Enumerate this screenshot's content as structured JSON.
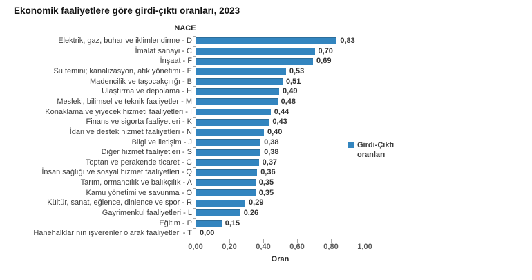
{
  "header": {
    "title": "Ekonomik faaliyetlere göre girdi-çıktı oranları, 2023"
  },
  "colors": {
    "bar": "#3385BF",
    "bar_edge": "#2D6E9B",
    "axis_line": "#A6A6A6",
    "tick_text": "#595959",
    "label_text": "#3d3d3d"
  },
  "chart_data": {
    "type": "bar",
    "orientation": "horizontal",
    "title": "Ekonomik faaliyetlere göre girdi-çıktı oranları, 2023",
    "category_axis_title": "NACE",
    "value_axis_title": "Oran",
    "xlim": [
      0,
      1.0
    ],
    "x_tick_values": [
      0,
      0.2,
      0.4,
      0.6,
      0.8,
      1.0
    ],
    "x_tick_labels": [
      "0,00",
      "0,20",
      "0,40",
      "0,60",
      "0,80",
      "1,00"
    ],
    "grid": false,
    "legend": {
      "position": "right",
      "label": "Girdi-Çıktı oranları"
    },
    "categories": [
      "Elektrik, gaz, buhar ve iklimlendirme - D",
      "İmalat sanayi - C",
      "İnşaat - F",
      "Su temini; kanalizasyon, atık yönetimi - E",
      "Madencilik ve taşocakçılığı - B",
      "Ulaştırma ve depolama - H",
      "Mesleki, bilimsel ve teknik faaliyetler - M",
      "Konaklama ve yiyecek hizmeti faaliyetleri - I",
      "Finans ve sigorta faaliyetleri - K",
      "İdari ve destek hizmet faaliyetleri - N",
      "Bilgi ve iletişim - J",
      "Diğer hizmet faaliyetleri - S",
      "Toptan ve perakende ticaret - G",
      "İnsan sağlığı ve sosyal hizmet faaliyetleri - Q",
      "Tarım, ormancılık ve balıkçılık - A",
      "Kamu yönetimi ve savunma - O",
      "Kültür, sanat, eğlence, dinlence ve spor - R",
      "Gayrimenkul faaliyetleri - L",
      "Eğitim - P",
      "Hanehalklarının işverenler olarak faaliyetleri - T"
    ],
    "values": [
      0.83,
      0.7,
      0.69,
      0.53,
      0.51,
      0.49,
      0.48,
      0.44,
      0.43,
      0.4,
      0.38,
      0.38,
      0.37,
      0.36,
      0.35,
      0.35,
      0.29,
      0.26,
      0.15,
      0.0
    ],
    "value_labels": [
      "0,83",
      "0,70",
      "0,69",
      "0,53",
      "0,51",
      "0,49",
      "0,48",
      "0,44",
      "0,43",
      "0,40",
      "0,38",
      "0,38",
      "0,37",
      "0,36",
      "0,35",
      "0,35",
      "0,29",
      "0,26",
      "0,15",
      "0,00"
    ]
  }
}
